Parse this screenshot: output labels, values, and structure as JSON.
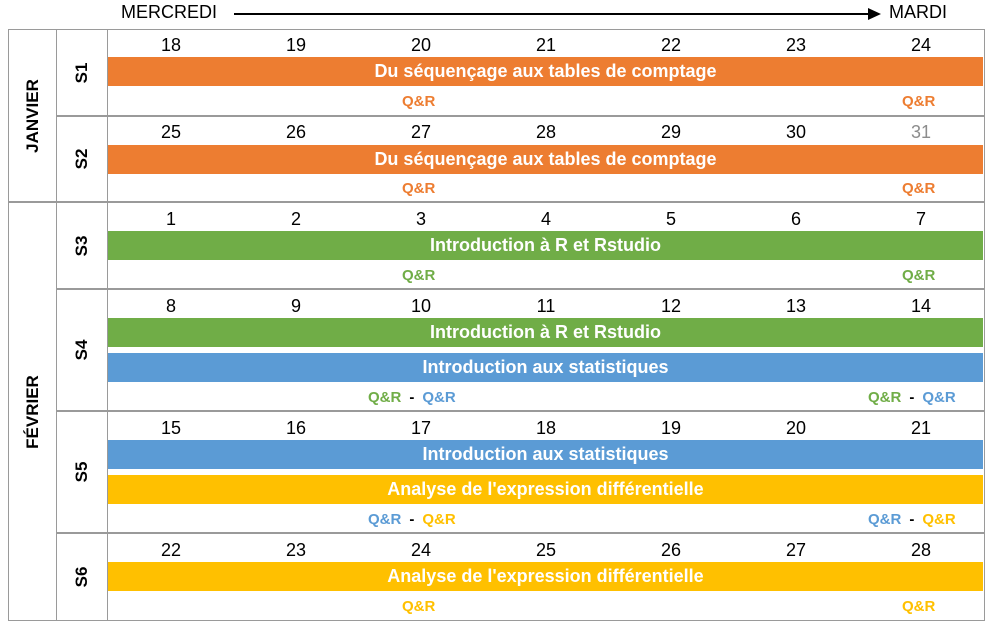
{
  "header": {
    "start": "MERCREDI",
    "end": "MARDI"
  },
  "colors": {
    "orange": "#ed7d31",
    "green": "#70ad47",
    "blue": "#5b9bd5",
    "yellow": "#ffc000"
  },
  "months": [
    {
      "label": "JANVIER"
    },
    {
      "label": "FÉVRIER"
    }
  ],
  "weeks": [
    {
      "label": "S1",
      "days": [
        "18",
        "19",
        "20",
        "21",
        "22",
        "23",
        "24"
      ],
      "bars": [
        {
          "text": "Du séquençage aux tables de comptage",
          "color": "orange"
        }
      ],
      "qa": [
        [
          "Q&R"
        ],
        [
          "Q&R"
        ]
      ]
    },
    {
      "label": "S2",
      "days": [
        "25",
        "26",
        "27",
        "28",
        "29",
        "30",
        "31"
      ],
      "bars": [
        {
          "text": "Du séquençage aux tables de comptage",
          "color": "orange"
        }
      ],
      "qa": [
        [
          "Q&R"
        ],
        [
          "Q&R"
        ]
      ]
    },
    {
      "label": "S3",
      "days": [
        "1",
        "2",
        "3",
        "4",
        "5",
        "6",
        "7"
      ],
      "bars": [
        {
          "text": "Introduction à R et Rstudio",
          "color": "green"
        }
      ],
      "qa": [
        [
          "Q&R"
        ],
        [
          "Q&R"
        ]
      ]
    },
    {
      "label": "S4",
      "days": [
        "8",
        "9",
        "10",
        "11",
        "12",
        "13",
        "14"
      ],
      "bars": [
        {
          "text": "Introduction à R et Rstudio",
          "color": "green"
        },
        {
          "text": "Introduction aux statistiques",
          "color": "blue"
        }
      ],
      "qa": [
        [
          "Q&R",
          "-",
          "Q&R"
        ],
        [
          "Q&R",
          "-",
          "Q&R"
        ]
      ]
    },
    {
      "label": "S5",
      "days": [
        "15",
        "16",
        "17",
        "18",
        "19",
        "20",
        "21"
      ],
      "bars": [
        {
          "text": "Introduction aux statistiques",
          "color": "blue"
        },
        {
          "text": "Analyse de l'expression différentielle",
          "color": "yellow"
        }
      ],
      "qa": [
        [
          "Q&R",
          "-",
          "Q&R"
        ],
        [
          "Q&R",
          "-",
          "Q&R"
        ]
      ]
    },
    {
      "label": "S6",
      "days": [
        "22",
        "23",
        "24",
        "25",
        "26",
        "27",
        "28"
      ],
      "bars": [
        {
          "text": "Analyse de l'expression différentielle",
          "color": "yellow"
        }
      ],
      "qa": [
        [
          "Q&R"
        ],
        [
          "Q&R"
        ]
      ]
    }
  ]
}
